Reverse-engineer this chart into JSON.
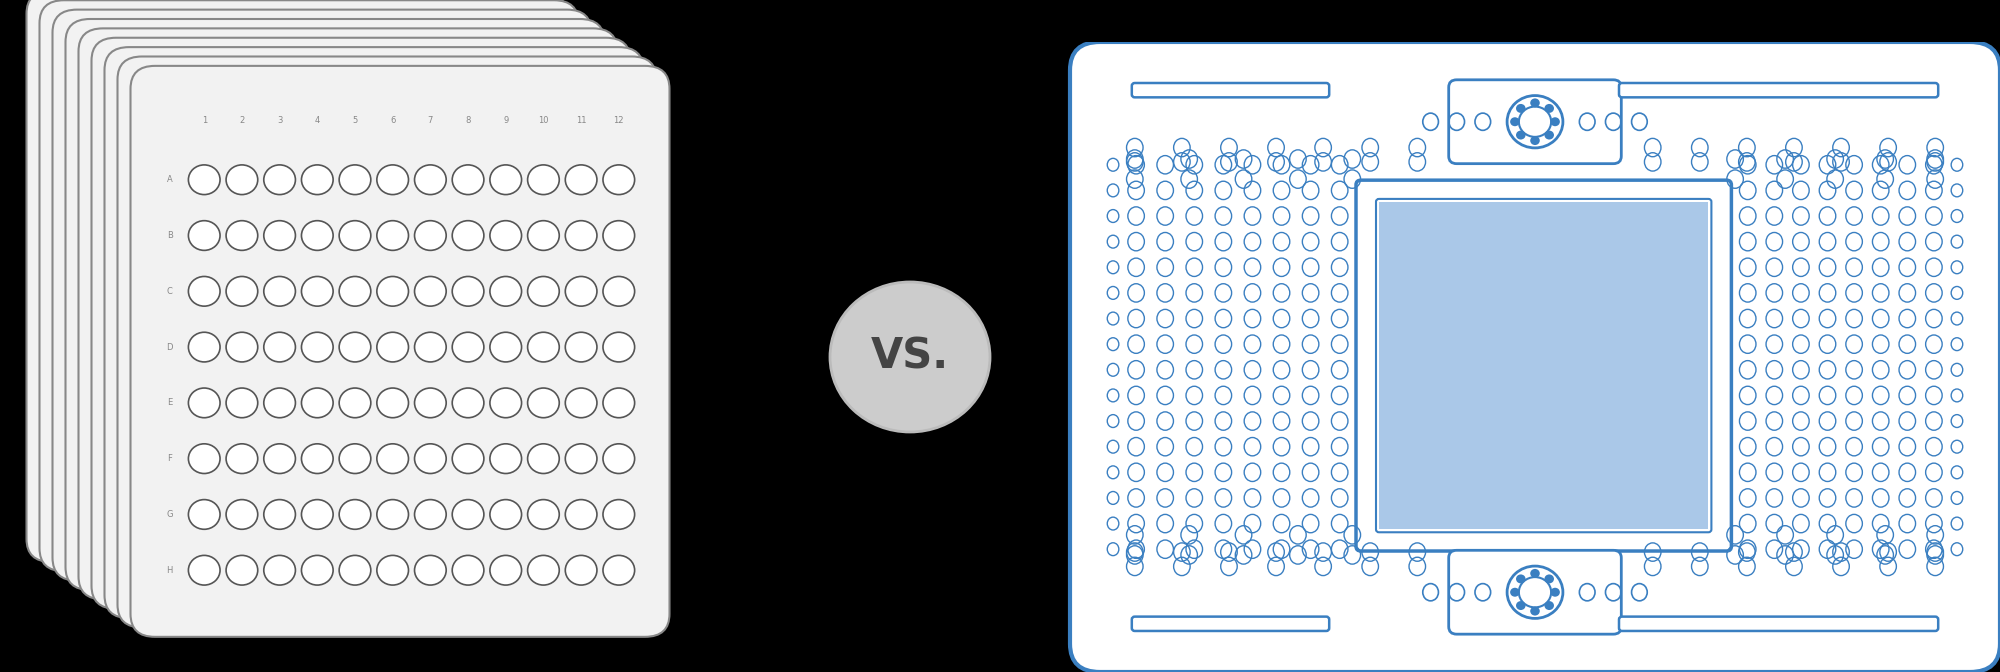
{
  "bg_color": "#000000",
  "plate_bg": "#f2f2f2",
  "plate_border": "#888888",
  "well_color": "#ffffff",
  "well_edge": "#555555",
  "label_color": "#888888",
  "vs_circle_color": "#cccccc",
  "vs_circle_edge": "#bbbbbb",
  "vs_text_color": "#444444",
  "vs_text": "VS.",
  "chip_bg": "#ffffff",
  "chip_border": "#3a7fc1",
  "chip_blue_fill": "#aac8e8",
  "num_stacked_plates": 9,
  "row_labels": [
    "A",
    "B",
    "C",
    "D",
    "E",
    "F",
    "G",
    "H"
  ],
  "col_labels": [
    "1",
    "2",
    "3",
    "4",
    "5",
    "6",
    "7",
    "8",
    "9",
    "10",
    "11",
    "12"
  ]
}
